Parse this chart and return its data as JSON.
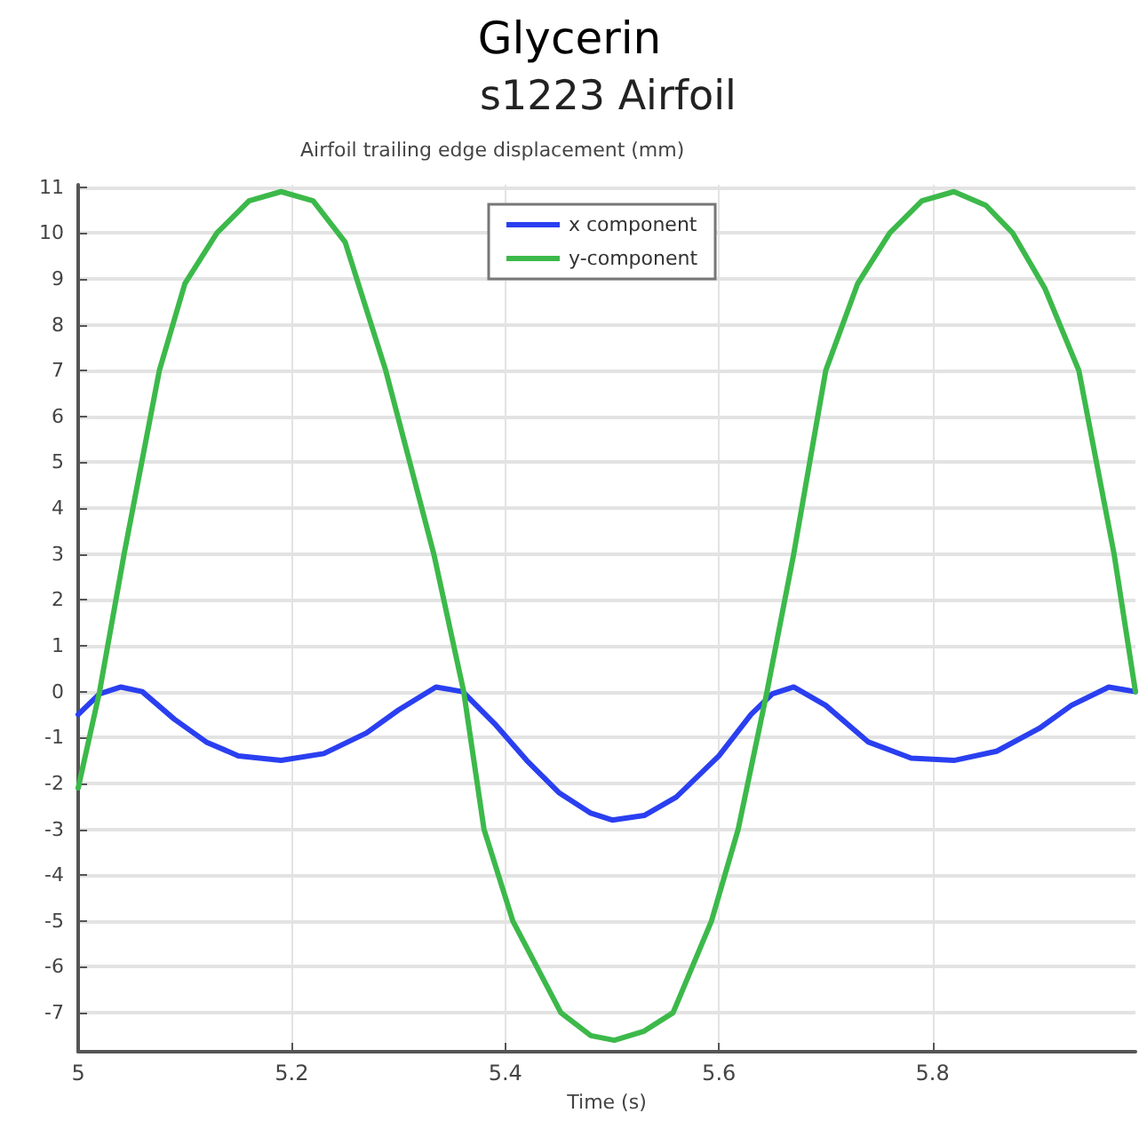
{
  "chart_data": {
    "type": "line",
    "title": "Glycerin",
    "subtitle": "s1223 Airfoil",
    "ylabel": "Airfoil trailing edge displacement (mm)",
    "xlabel": "Time (s)",
    "xlim": [
      5,
      5.99
    ],
    "xticks": [
      5,
      5.2,
      5.4,
      5.6,
      5.8
    ],
    "ylim": [
      -7.85,
      11.05
    ],
    "yticks": [
      -7,
      -6,
      -5,
      -4,
      -3,
      -2,
      -1,
      0,
      1,
      2,
      3,
      4,
      5,
      6,
      7,
      8,
      9,
      10,
      11
    ],
    "grid": true,
    "legend": "top",
    "marker": "none",
    "line_style": "solid",
    "series": [
      {
        "name": "x component",
        "color": "#2a3ff0",
        "x": [
          5.0,
          5.02,
          5.04,
          5.06,
          5.09,
          5.12,
          5.15,
          5.19,
          5.23,
          5.27,
          5.3,
          5.335,
          5.36,
          5.39,
          5.42,
          5.45,
          5.48,
          5.5,
          5.53,
          5.56,
          5.6,
          5.63,
          5.65,
          5.67,
          5.7,
          5.74,
          5.78,
          5.82,
          5.86,
          5.9,
          5.93,
          5.965,
          5.99
        ],
        "values": [
          -0.5,
          -0.05,
          0.1,
          0.0,
          -0.6,
          -1.1,
          -1.4,
          -1.5,
          -1.35,
          -0.9,
          -0.4,
          0.1,
          0.0,
          -0.7,
          -1.5,
          -2.2,
          -2.65,
          -2.8,
          -2.7,
          -2.3,
          -1.4,
          -0.5,
          -0.05,
          0.1,
          -0.3,
          -1.1,
          -1.45,
          -1.5,
          -1.3,
          -0.8,
          -0.3,
          0.1,
          0.0
        ]
      },
      {
        "name": "y-component",
        "color": "#3cb94a",
        "x": [
          5.0,
          5.02,
          5.043,
          5.076,
          5.1,
          5.13,
          5.16,
          5.19,
          5.22,
          5.25,
          5.288,
          5.333,
          5.361,
          5.38,
          5.407,
          5.452,
          5.48,
          5.502,
          5.53,
          5.557,
          5.593,
          5.618,
          5.645,
          5.67,
          5.7,
          5.73,
          5.76,
          5.79,
          5.82,
          5.85,
          5.875,
          5.905,
          5.937,
          5.97,
          5.99
        ],
        "values": [
          -2.1,
          0.0,
          3.0,
          7.0,
          8.9,
          10.0,
          10.7,
          10.9,
          10.7,
          9.8,
          7.0,
          3.0,
          0.0,
          -3.0,
          -5.0,
          -7.0,
          -7.5,
          -7.6,
          -7.4,
          -7.0,
          -5.0,
          -3.0,
          0.0,
          3.0,
          7.0,
          8.9,
          10.0,
          10.7,
          10.9,
          10.6,
          10.0,
          8.8,
          7.0,
          3.0,
          0.0
        ]
      }
    ]
  }
}
